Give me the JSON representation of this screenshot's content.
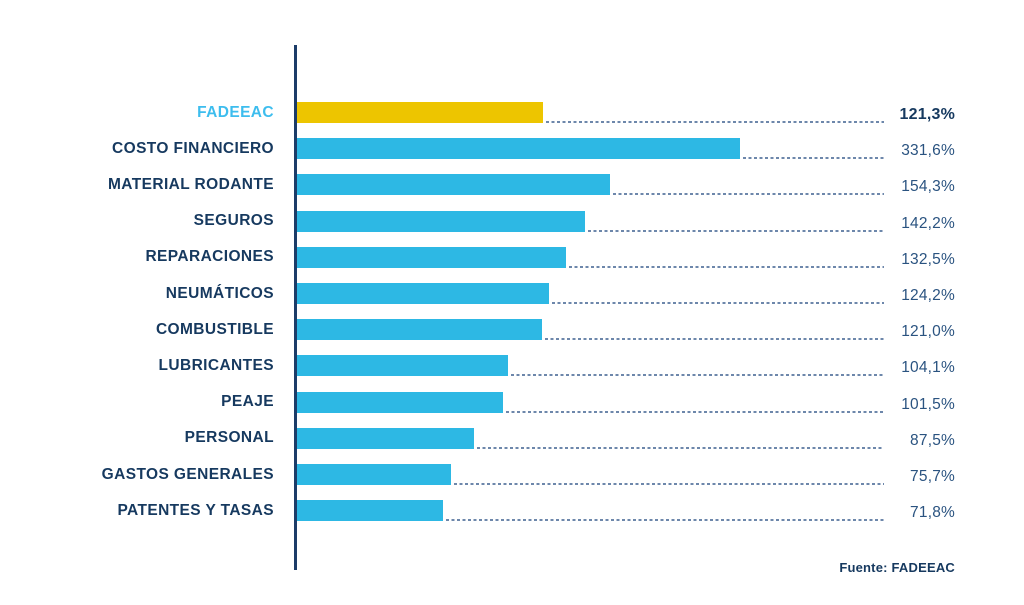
{
  "chart_data": {
    "type": "bar",
    "orientation": "horizontal",
    "title": "",
    "categories": [
      "FADEEAC",
      "COSTO FINANCIERO",
      "MATERIAL RODANTE",
      "SEGUROS",
      "REPARACIONES",
      "NEUMÁTICOS",
      "COMBUSTIBLE",
      "LUBRICANTES",
      "PEAJE",
      "PERSONAL",
      "GASTOS GENERALES",
      "PATENTES Y TASAS"
    ],
    "values": [
      121.3,
      331.6,
      154.3,
      142.2,
      132.5,
      124.2,
      121.0,
      104.1,
      101.5,
      87.5,
      75.7,
      71.8
    ],
    "value_labels": [
      "121,3%",
      "331,6%",
      "154,3%",
      "142,2%",
      "132,5%",
      "124,2%",
      "121,0%",
      "104,1%",
      "101,5%",
      "87,5%",
      "75,7%",
      "71,8%"
    ],
    "unit": "%",
    "highlight_category": "FADEEAC",
    "highlight_index": 0,
    "legend": "none",
    "grid": "off",
    "note_longest_bar_truncated": "COSTO FINANCIERO bar is drawn truncated (not to scale with 331,6%)",
    "source": "Fuente: FADEEAC",
    "colors": {
      "bar": "#2db8e4",
      "highlight_bar": "#edc500",
      "category_label": "#16395f",
      "highlight_category_label": "#3dbdee",
      "value_label": "#2a5380",
      "axis_line": "#1c3c68",
      "leader_dots": "#6d87ab",
      "background": "#ffffff"
    }
  }
}
